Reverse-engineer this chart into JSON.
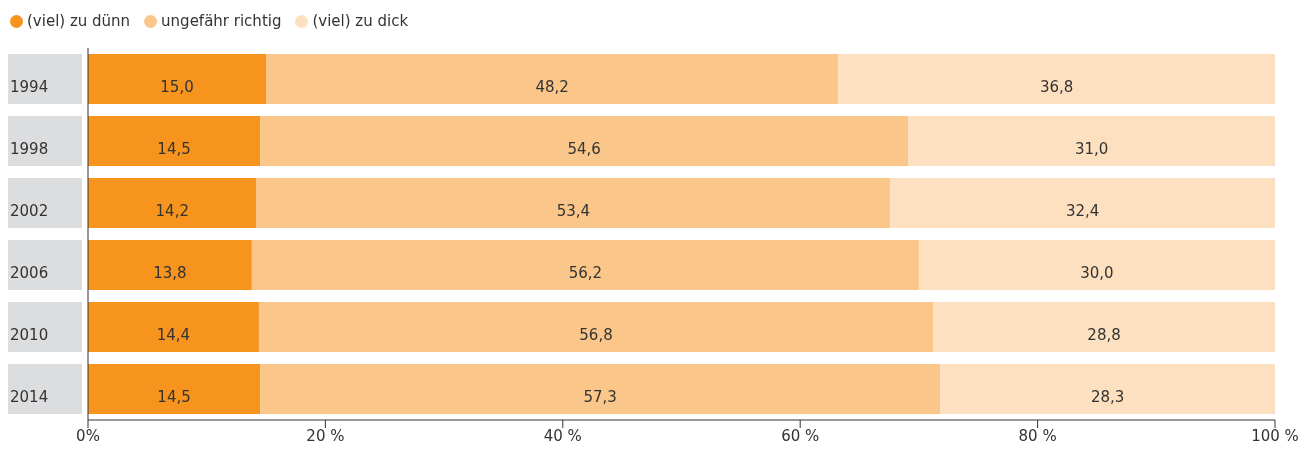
{
  "chart_data": {
    "type": "bar",
    "orientation": "horizontal",
    "stacked": true,
    "categories": [
      "1994",
      "1998",
      "2002",
      "2006",
      "2010",
      "2014"
    ],
    "series": [
      {
        "name": "(viel) zu dünn",
        "color": "#f7941d",
        "values": [
          15.0,
          14.5,
          14.2,
          13.8,
          14.4,
          14.5
        ],
        "value_labels": [
          "15,0",
          "14,5",
          "14,2",
          "13,8",
          "14,4",
          "14,5"
        ]
      },
      {
        "name": "ungefähr richtig",
        "color": "#fbc689",
        "values": [
          48.2,
          54.6,
          53.4,
          56.2,
          56.8,
          57.3
        ],
        "value_labels": [
          "48,2",
          "54,6",
          "53,4",
          "56,2",
          "56,8",
          "57,3"
        ]
      },
      {
        "name": "(viel) zu dick",
        "color": "#fde0bf",
        "values": [
          36.8,
          31.0,
          32.4,
          30.0,
          28.8,
          28.3
        ],
        "value_labels": [
          "36,8",
          "31,0",
          "32,4",
          "30,0",
          "28,8",
          "28,3"
        ]
      }
    ],
    "xlim": [
      0,
      100
    ],
    "xticks": [
      {
        "value": 0,
        "label": "0%"
      },
      {
        "value": 20,
        "label": "20 %"
      },
      {
        "value": 40,
        "label": "40 %"
      },
      {
        "value": 60,
        "label": "60 %"
      },
      {
        "value": 80,
        "label": "80 %"
      },
      {
        "value": 100,
        "label": "100 %"
      }
    ],
    "legend": "top left",
    "grid": false
  }
}
